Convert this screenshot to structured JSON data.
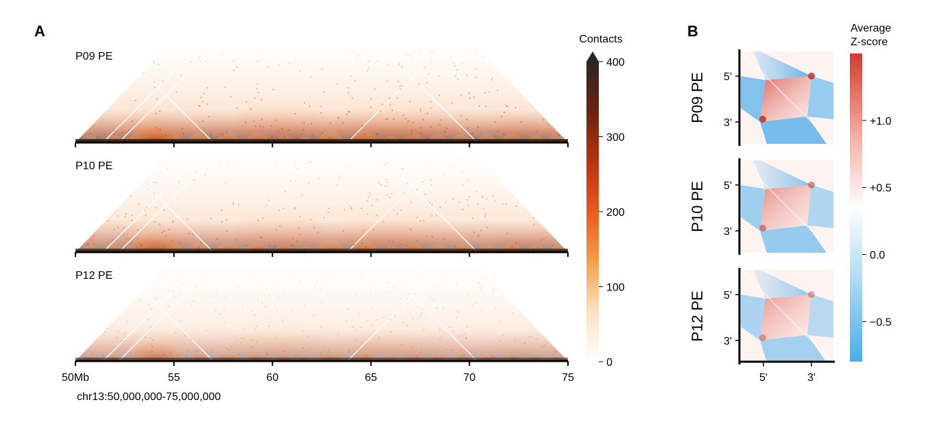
{
  "panel_a": {
    "letter": "A",
    "region_label": "chr13:50,000,000-75,000,000",
    "colorbar": {
      "title": "Contacts",
      "ticks": [
        "0",
        "100",
        "200",
        "300",
        "400"
      ],
      "colors": [
        "#ffffff",
        "#fbe2c4",
        "#f4a04a",
        "#e85a1e",
        "#b8330f",
        "#6b2310",
        "#2b2624"
      ]
    }
  },
  "panel_b": {
    "letter": "B",
    "colorbar": {
      "title_line1": "Average",
      "title_line2": "Z-score",
      "ticks": [
        "+1.0",
        "+0.5",
        "0.0",
        "−0.5"
      ],
      "colors": [
        "#d03c30",
        "#f6a59c",
        "#ffffff",
        "#a9d7f2",
        "#4aaeea"
      ]
    },
    "rows": [
      {
        "label": "P09 PE",
        "y_ticks": [
          "5'",
          "3'"
        ],
        "strength": 1.0
      },
      {
        "label": "P10 PE",
        "y_ticks": [
          "5'",
          "3'"
        ],
        "strength": 0.62
      },
      {
        "label": "P12 PE",
        "y_ticks": [
          "5'",
          "3'"
        ],
        "strength": 0.48
      }
    ],
    "x_ticks": [
      "5'",
      "3'"
    ]
  },
  "chart_data": [
    {
      "type": "heatmap",
      "title": "",
      "xlabel": "chr13:50,000,000-75,000,000",
      "x_tick_labels": [
        "50Mb",
        "55",
        "60",
        "65",
        "70",
        "75"
      ],
      "x_ticks_mb": [
        50,
        55,
        60,
        65,
        70,
        75
      ],
      "xlim_mb": [
        50,
        75
      ],
      "colorbar_label": "Contacts",
      "colorbar_ticks": [
        0,
        100,
        200,
        300,
        400
      ],
      "colorbar_range": [
        0,
        400
      ],
      "colorbar_extend": "max",
      "tad_boundaries_mb": [
        50.2,
        51.3,
        52.5,
        55.6,
        57.0,
        58.5,
        60.0,
        61.2,
        62.1,
        63.8,
        65.5,
        66.5,
        67.8,
        69.0,
        70.3,
        71.5,
        72.8,
        73.9,
        75.0
      ],
      "panels": [
        {
          "label": "P09 PE",
          "intensity": 1.0
        },
        {
          "label": "P10 PE",
          "intensity": 0.8
        },
        {
          "label": "P12 PE",
          "intensity": 0.45
        }
      ]
    },
    {
      "type": "heatmap",
      "title": "",
      "x_tick_labels": [
        "5'",
        "3'"
      ],
      "y_tick_labels": [
        "5'",
        "3'"
      ],
      "colorbar_label": "Average Z-score",
      "colorbar_ticks": [
        1.0,
        0.5,
        0.0,
        -0.5
      ],
      "panels": [
        "P09 PE",
        "P10 PE",
        "P12 PE"
      ]
    }
  ]
}
